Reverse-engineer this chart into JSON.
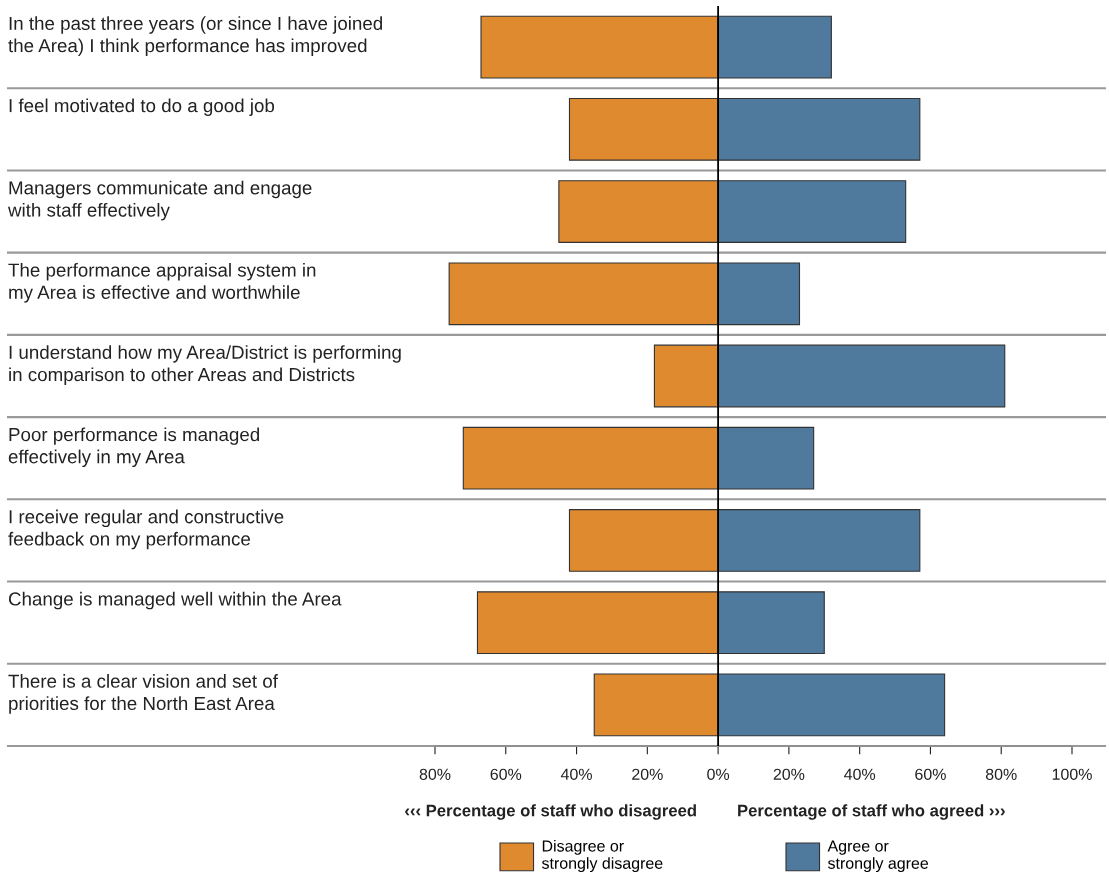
{
  "chart_data": {
    "type": "bar",
    "orientation": "horizontal",
    "stacked": true,
    "categories": [
      "In the past three years (or since I have joined\nthe Area) I think performance has improved",
      "I feel motivated to do a good job",
      "Managers communicate and engage\nwith staff effectively",
      "The performance appraisal system in\nmy Area is effective and worthwhile",
      "I understand how my Area/District is performing\nin comparison to other Areas and Districts",
      "Poor performance is managed\neffectively in my Area",
      "I receive regular and constructive\nfeedback on my performance",
      "Change is managed well within the Area",
      "There is a clear vision and set of\npriorities for the North East Area"
    ],
    "series": [
      {
        "name": "Disagree or\nstrongly disagree",
        "color": "#e08a30",
        "values": [
          -67,
          -42,
          -45,
          -76,
          -18,
          -72,
          -42,
          -68,
          -35
        ]
      },
      {
        "name": "Agree or\nstrongly agree",
        "color": "#4f7a9e",
        "values": [
          32,
          57,
          53,
          23,
          81,
          27,
          57,
          30,
          64
        ]
      }
    ],
    "xlim": [
      -80,
      100
    ],
    "xticks": [
      {
        "value": -80,
        "label": "80%"
      },
      {
        "value": -60,
        "label": "60%"
      },
      {
        "value": -40,
        "label": "40%"
      },
      {
        "value": -20,
        "label": "20%"
      },
      {
        "value": 0,
        "label": "0%"
      },
      {
        "value": 20,
        "label": "20%"
      },
      {
        "value": 40,
        "label": "40%"
      },
      {
        "value": 60,
        "label": "60%"
      },
      {
        "value": 80,
        "label": "80%"
      },
      {
        "value": 100,
        "label": "100%"
      }
    ],
    "ref_lines": [
      {
        "axis": "x",
        "value": 0,
        "color": "#000000"
      }
    ],
    "annotations": [
      "‹‹‹ Percentage of staff who disagreed",
      "Percentage of staff who agreed ›››"
    ],
    "grid": "y",
    "legend": "bottom",
    "tick_labels": "x"
  }
}
